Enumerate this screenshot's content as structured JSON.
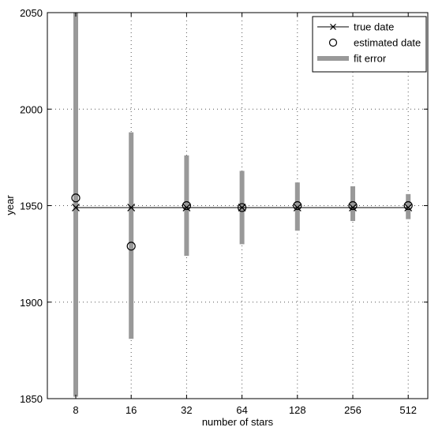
{
  "chart_data": {
    "type": "scatter",
    "xlabel": "number of stars",
    "ylabel": "year",
    "categories": [
      "8",
      "16",
      "32",
      "64",
      "128",
      "256",
      "512"
    ],
    "ylim": [
      1850,
      2050
    ],
    "yticks": [
      1850,
      1900,
      1950,
      2000,
      2050
    ],
    "grid": true,
    "legend_position": "top-right",
    "series": [
      {
        "name": "true date",
        "marker": "x",
        "style": "line",
        "color": "#000000",
        "values": [
          1949,
          1949,
          1949,
          1949,
          1949,
          1949,
          1949
        ]
      },
      {
        "name": "estimated date",
        "marker": "circle",
        "style": "marker",
        "color": "#000000",
        "values": [
          1954,
          1929,
          1950,
          1949,
          1950,
          1950,
          1950
        ]
      },
      {
        "name": "fit error",
        "marker": "bar",
        "style": "errorbar",
        "color": "#999999",
        "low": [
          1851,
          1881,
          1924,
          1930,
          1937,
          1942,
          1943
        ],
        "high": [
          2050,
          1988,
          1976,
          1968,
          1962,
          1960,
          1956
        ]
      }
    ]
  }
}
